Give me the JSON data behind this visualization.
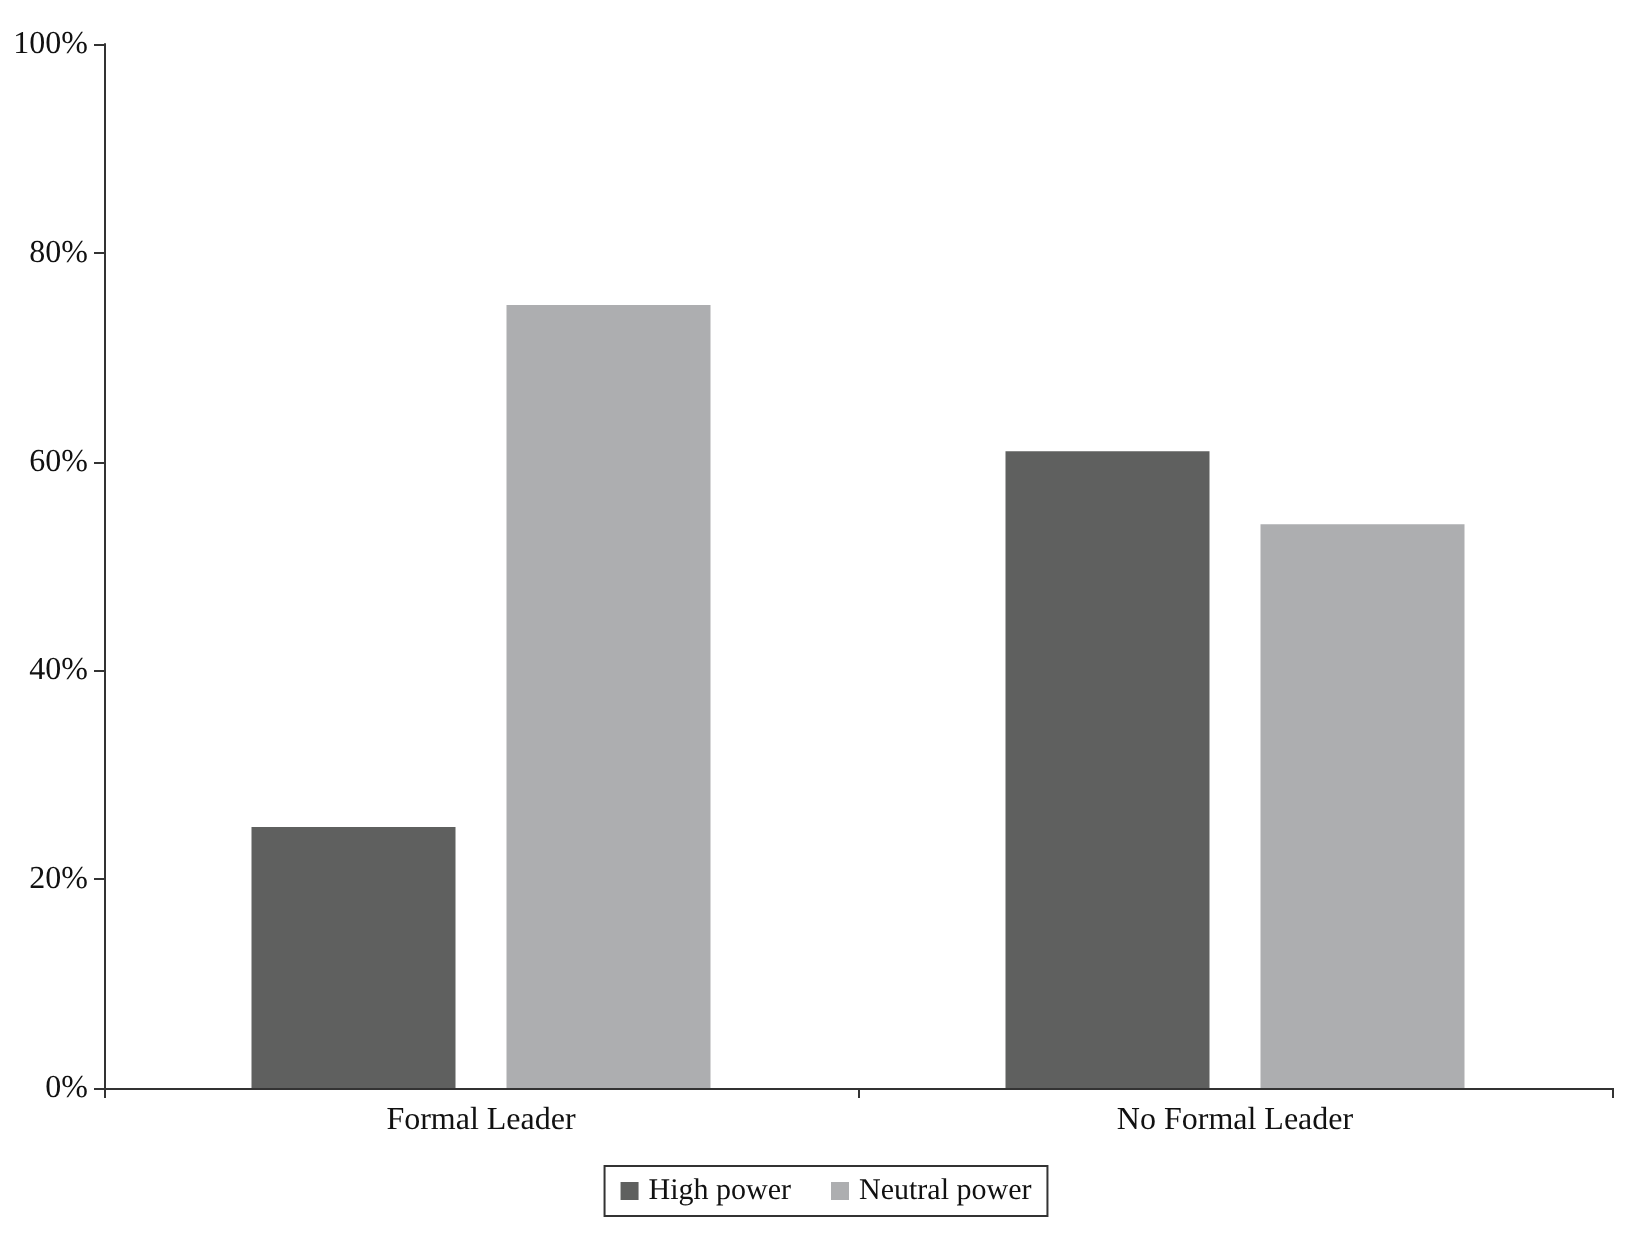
{
  "chart_data": {
    "type": "bar",
    "categories": [
      "Formal Leader",
      "No Formal Leader"
    ],
    "series": [
      {
        "name": "High power",
        "color": "#5f605f",
        "values": [
          25,
          61
        ]
      },
      {
        "name": "Neutral power",
        "color": "#adaeb0",
        "values": [
          75,
          54
        ]
      }
    ],
    "ylim": [
      0,
      100
    ],
    "yticks": [
      {
        "value": 0,
        "label": "0%"
      },
      {
        "value": 20,
        "label": "20%"
      },
      {
        "value": 40,
        "label": "40%"
      },
      {
        "value": 60,
        "label": "60%"
      },
      {
        "value": 80,
        "label": "80%"
      },
      {
        "value": 100,
        "label": "100%"
      }
    ],
    "grid": false,
    "legend": "bottom"
  }
}
